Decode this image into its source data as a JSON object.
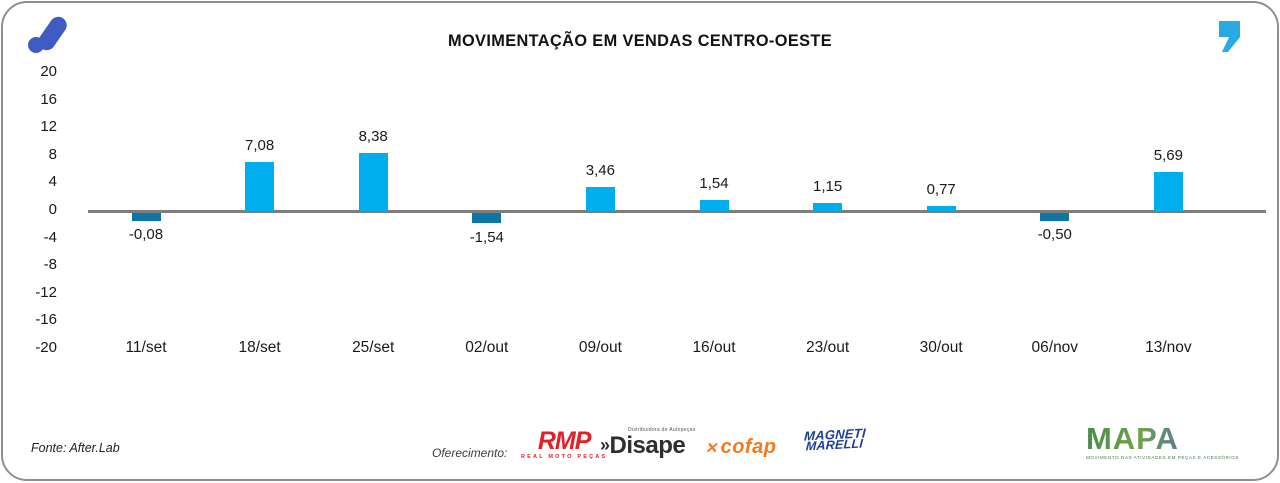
{
  "header": {
    "title": "MOVIMENTAÇÃO EM VENDAS CENTRO-OESTE",
    "brand_logo_color": "#3e5cc3",
    "quote_icon_color": "#29abe2"
  },
  "chart_data": {
    "type": "bar",
    "title": "MOVIMENTAÇÃO EM VENDAS CENTRO-OESTE",
    "categories": [
      "11/set",
      "18/set",
      "25/set",
      "02/out",
      "09/out",
      "16/out",
      "23/out",
      "30/out",
      "06/nov",
      "13/nov"
    ],
    "values": [
      -0.08,
      7.08,
      8.38,
      -1.54,
      3.46,
      1.54,
      1.15,
      0.77,
      -0.5,
      5.69
    ],
    "value_labels": [
      "-0,08",
      "7,08",
      "8,38",
      "-1,54",
      "3,46",
      "1,54",
      "1,15",
      "0,77",
      "-0,50",
      "5,69"
    ],
    "y_ticks": [
      20,
      16,
      12,
      8,
      4,
      0,
      -4,
      -8,
      -12,
      -16,
      -20
    ],
    "ylim": [
      -20,
      20
    ],
    "grid": false,
    "legend": "none",
    "positive_color": "#00aeef",
    "negative_color": "#0c76a4",
    "zero_line_color": "#7d7d7d"
  },
  "footer": {
    "fonte": "Fonte: After.Lab",
    "oferecimento_label": "Oferecimento:",
    "sponsors": {
      "rmp": {
        "name": "RMP",
        "tagline": "REAL MOTO PEÇAS"
      },
      "disape": {
        "chevron": "»",
        "name": "Disape",
        "tagline": "Distribuidora de Autopeças"
      },
      "cofap": {
        "glyph": "✕",
        "name": "cofap"
      },
      "magneti": {
        "line1": "MAGNETI",
        "line2": "MARELLI"
      },
      "mapa": {
        "name": "MAPA",
        "tagline": "MOVIMENTO DAS ATIVIDADES EM PEÇAS E ACESSÓRIOS"
      }
    }
  }
}
